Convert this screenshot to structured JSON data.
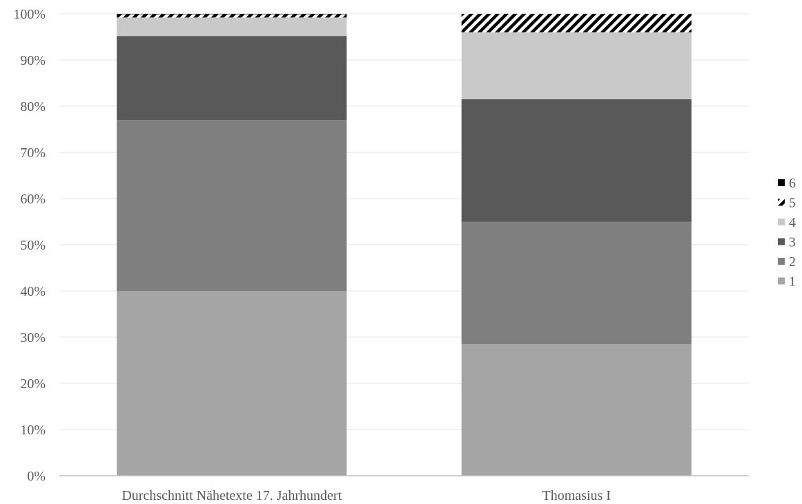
{
  "chart_data": {
    "type": "bar",
    "stacked": true,
    "percent_stacked": true,
    "categories": [
      "Durchschnitt Nähetexte 17. Jahrhundert",
      "Thomasius I"
    ],
    "series": [
      {
        "name": "1",
        "color": "#a5a5a5",
        "pattern": "solid",
        "values": [
          40,
          28.5
        ]
      },
      {
        "name": "2",
        "color": "#7f7f7f",
        "pattern": "solid",
        "values": [
          37,
          26.5
        ]
      },
      {
        "name": "3",
        "color": "#595959",
        "pattern": "solid",
        "values": [
          18.2,
          26.5
        ]
      },
      {
        "name": "4",
        "color": "#c9c9c9",
        "pattern": "solid",
        "values": [
          4,
          14.5
        ]
      },
      {
        "name": "5",
        "color": "#000000",
        "pattern": "diagonal-stripes",
        "values": [
          0.7,
          4
        ]
      },
      {
        "name": "6",
        "color": "#000000",
        "pattern": "solid",
        "values": [
          0.1,
          0
        ]
      }
    ],
    "ylim": [
      0,
      100
    ],
    "yticks": [
      "0%",
      "10%",
      "20%",
      "30%",
      "40%",
      "50%",
      "60%",
      "70%",
      "80%",
      "90%",
      "100%"
    ],
    "title": "",
    "xlabel": "",
    "ylabel": "",
    "grid": true,
    "legend_position": "right"
  }
}
